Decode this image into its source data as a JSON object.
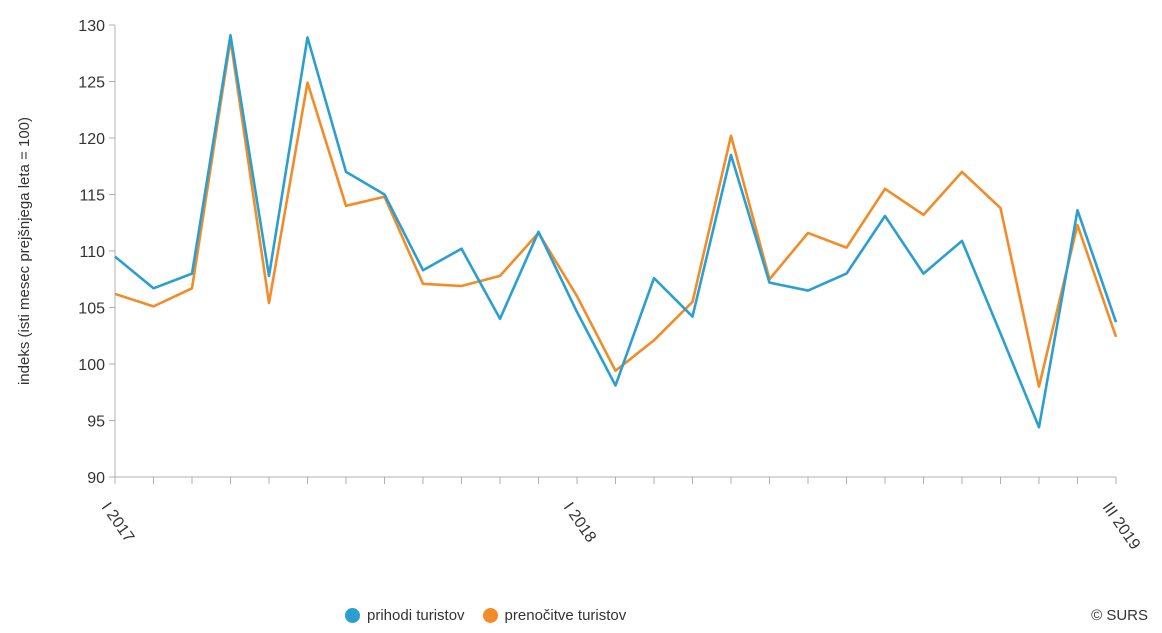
{
  "chart_data": {
    "type": "line",
    "ylabel": "indeks (isti mesec prejšnjega leta = 100)",
    "ylim": [
      90,
      130
    ],
    "yticks": [
      90,
      95,
      100,
      105,
      110,
      115,
      120,
      125,
      130
    ],
    "x_tick_labels": [
      {
        "index": 0,
        "label": "I 2017"
      },
      {
        "index": 12,
        "label": "I 2018"
      },
      {
        "index": 26,
        "label": "III 2019"
      }
    ],
    "series": [
      {
        "name": "prihodi turistov",
        "color": "#2a9fd0",
        "values": [
          109.5,
          106.7,
          108.0,
          129.1,
          107.8,
          128.9,
          117.0,
          115.0,
          108.3,
          110.2,
          104.0,
          111.7,
          104.6,
          98.1,
          107.6,
          104.2,
          118.5,
          107.2,
          106.5,
          108.0,
          113.1,
          108.0,
          110.9,
          102.7,
          94.4,
          113.6,
          103.7
        ]
      },
      {
        "name": "prenočitve turistov",
        "color": "#f28c28",
        "values": [
          106.2,
          105.1,
          106.7,
          128.7,
          105.4,
          124.9,
          114.0,
          114.8,
          107.1,
          106.9,
          107.8,
          111.6,
          106.0,
          99.4,
          102.1,
          105.5,
          120.2,
          107.5,
          111.6,
          110.3,
          115.5,
          113.2,
          117.0,
          113.8,
          98.0,
          112.3,
          102.4
        ]
      }
    ]
  },
  "copyright": "© SURS"
}
